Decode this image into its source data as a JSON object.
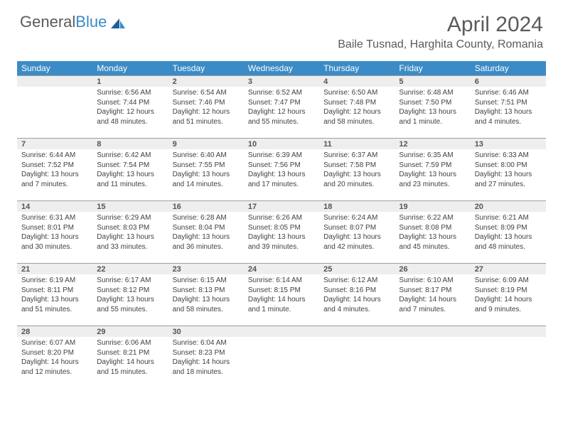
{
  "logo": {
    "text1": "General",
    "text2": "Blue"
  },
  "title": "April 2024",
  "location": "Baile Tusnad, Harghita County, Romania",
  "headers": [
    "Sunday",
    "Monday",
    "Tuesday",
    "Wednesday",
    "Thursday",
    "Friday",
    "Saturday"
  ],
  "colors": {
    "header_bg": "#3b8bc6",
    "header_text": "#ffffff",
    "daynum_bg": "#eeeeee",
    "daynum_border": "#9aa0a6",
    "body_text": "#414141",
    "title_text": "#5a5a5a"
  },
  "weeks": [
    [
      {
        "n": "",
        "sr": "",
        "ss": "",
        "dl": ""
      },
      {
        "n": "1",
        "sr": "Sunrise: 6:56 AM",
        "ss": "Sunset: 7:44 PM",
        "dl": "Daylight: 12 hours and 48 minutes."
      },
      {
        "n": "2",
        "sr": "Sunrise: 6:54 AM",
        "ss": "Sunset: 7:46 PM",
        "dl": "Daylight: 12 hours and 51 minutes."
      },
      {
        "n": "3",
        "sr": "Sunrise: 6:52 AM",
        "ss": "Sunset: 7:47 PM",
        "dl": "Daylight: 12 hours and 55 minutes."
      },
      {
        "n": "4",
        "sr": "Sunrise: 6:50 AM",
        "ss": "Sunset: 7:48 PM",
        "dl": "Daylight: 12 hours and 58 minutes."
      },
      {
        "n": "5",
        "sr": "Sunrise: 6:48 AM",
        "ss": "Sunset: 7:50 PM",
        "dl": "Daylight: 13 hours and 1 minute."
      },
      {
        "n": "6",
        "sr": "Sunrise: 6:46 AM",
        "ss": "Sunset: 7:51 PM",
        "dl": "Daylight: 13 hours and 4 minutes."
      }
    ],
    [
      {
        "n": "7",
        "sr": "Sunrise: 6:44 AM",
        "ss": "Sunset: 7:52 PM",
        "dl": "Daylight: 13 hours and 7 minutes."
      },
      {
        "n": "8",
        "sr": "Sunrise: 6:42 AM",
        "ss": "Sunset: 7:54 PM",
        "dl": "Daylight: 13 hours and 11 minutes."
      },
      {
        "n": "9",
        "sr": "Sunrise: 6:40 AM",
        "ss": "Sunset: 7:55 PM",
        "dl": "Daylight: 13 hours and 14 minutes."
      },
      {
        "n": "10",
        "sr": "Sunrise: 6:39 AM",
        "ss": "Sunset: 7:56 PM",
        "dl": "Daylight: 13 hours and 17 minutes."
      },
      {
        "n": "11",
        "sr": "Sunrise: 6:37 AM",
        "ss": "Sunset: 7:58 PM",
        "dl": "Daylight: 13 hours and 20 minutes."
      },
      {
        "n": "12",
        "sr": "Sunrise: 6:35 AM",
        "ss": "Sunset: 7:59 PM",
        "dl": "Daylight: 13 hours and 23 minutes."
      },
      {
        "n": "13",
        "sr": "Sunrise: 6:33 AM",
        "ss": "Sunset: 8:00 PM",
        "dl": "Daylight: 13 hours and 27 minutes."
      }
    ],
    [
      {
        "n": "14",
        "sr": "Sunrise: 6:31 AM",
        "ss": "Sunset: 8:01 PM",
        "dl": "Daylight: 13 hours and 30 minutes."
      },
      {
        "n": "15",
        "sr": "Sunrise: 6:29 AM",
        "ss": "Sunset: 8:03 PM",
        "dl": "Daylight: 13 hours and 33 minutes."
      },
      {
        "n": "16",
        "sr": "Sunrise: 6:28 AM",
        "ss": "Sunset: 8:04 PM",
        "dl": "Daylight: 13 hours and 36 minutes."
      },
      {
        "n": "17",
        "sr": "Sunrise: 6:26 AM",
        "ss": "Sunset: 8:05 PM",
        "dl": "Daylight: 13 hours and 39 minutes."
      },
      {
        "n": "18",
        "sr": "Sunrise: 6:24 AM",
        "ss": "Sunset: 8:07 PM",
        "dl": "Daylight: 13 hours and 42 minutes."
      },
      {
        "n": "19",
        "sr": "Sunrise: 6:22 AM",
        "ss": "Sunset: 8:08 PM",
        "dl": "Daylight: 13 hours and 45 minutes."
      },
      {
        "n": "20",
        "sr": "Sunrise: 6:21 AM",
        "ss": "Sunset: 8:09 PM",
        "dl": "Daylight: 13 hours and 48 minutes."
      }
    ],
    [
      {
        "n": "21",
        "sr": "Sunrise: 6:19 AM",
        "ss": "Sunset: 8:11 PM",
        "dl": "Daylight: 13 hours and 51 minutes."
      },
      {
        "n": "22",
        "sr": "Sunrise: 6:17 AM",
        "ss": "Sunset: 8:12 PM",
        "dl": "Daylight: 13 hours and 55 minutes."
      },
      {
        "n": "23",
        "sr": "Sunrise: 6:15 AM",
        "ss": "Sunset: 8:13 PM",
        "dl": "Daylight: 13 hours and 58 minutes."
      },
      {
        "n": "24",
        "sr": "Sunrise: 6:14 AM",
        "ss": "Sunset: 8:15 PM",
        "dl": "Daylight: 14 hours and 1 minute."
      },
      {
        "n": "25",
        "sr": "Sunrise: 6:12 AM",
        "ss": "Sunset: 8:16 PM",
        "dl": "Daylight: 14 hours and 4 minutes."
      },
      {
        "n": "26",
        "sr": "Sunrise: 6:10 AM",
        "ss": "Sunset: 8:17 PM",
        "dl": "Daylight: 14 hours and 7 minutes."
      },
      {
        "n": "27",
        "sr": "Sunrise: 6:09 AM",
        "ss": "Sunset: 8:19 PM",
        "dl": "Daylight: 14 hours and 9 minutes."
      }
    ],
    [
      {
        "n": "28",
        "sr": "Sunrise: 6:07 AM",
        "ss": "Sunset: 8:20 PM",
        "dl": "Daylight: 14 hours and 12 minutes."
      },
      {
        "n": "29",
        "sr": "Sunrise: 6:06 AM",
        "ss": "Sunset: 8:21 PM",
        "dl": "Daylight: 14 hours and 15 minutes."
      },
      {
        "n": "30",
        "sr": "Sunrise: 6:04 AM",
        "ss": "Sunset: 8:23 PM",
        "dl": "Daylight: 14 hours and 18 minutes."
      },
      {
        "n": "",
        "sr": "",
        "ss": "",
        "dl": ""
      },
      {
        "n": "",
        "sr": "",
        "ss": "",
        "dl": ""
      },
      {
        "n": "",
        "sr": "",
        "ss": "",
        "dl": ""
      },
      {
        "n": "",
        "sr": "",
        "ss": "",
        "dl": ""
      }
    ]
  ]
}
